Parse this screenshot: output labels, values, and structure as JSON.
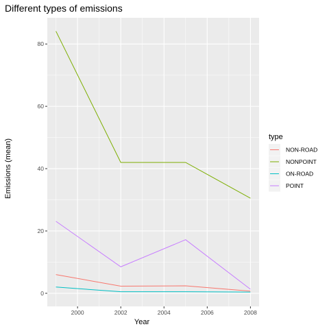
{
  "chart_data": {
    "type": "line",
    "title": "Different types of emissions",
    "xlabel": "Year",
    "ylabel": "Emissions (mean)",
    "x": [
      1999,
      2002,
      2005,
      2008
    ],
    "xlim": [
      1998.6,
      2008.4
    ],
    "ylim": [
      -4.2,
      88.4
    ],
    "xticks": [
      2000,
      2002,
      2004,
      2006,
      2008
    ],
    "yticks": [
      0,
      20,
      40,
      60,
      80
    ],
    "grid": true,
    "legend_title": "type",
    "legend_position": "right",
    "series": [
      {
        "name": "NON-ROAD",
        "values": [
          6.0,
          2.3,
          2.4,
          0.7
        ],
        "color": "#F8766D"
      },
      {
        "name": "NONPOINT",
        "values": [
          84.1,
          42.0,
          42.0,
          30.5
        ],
        "color": "#7CAE00"
      },
      {
        "name": "ON-ROAD",
        "values": [
          2.0,
          0.5,
          0.5,
          0.4
        ],
        "color": "#00BFC4"
      },
      {
        "name": "POINT",
        "values": [
          23.1,
          8.5,
          17.2,
          1.3
        ],
        "color": "#C77CFF"
      }
    ],
    "panel_background": "#EBEBEB",
    "gridline_color": "#FFFFFF"
  }
}
